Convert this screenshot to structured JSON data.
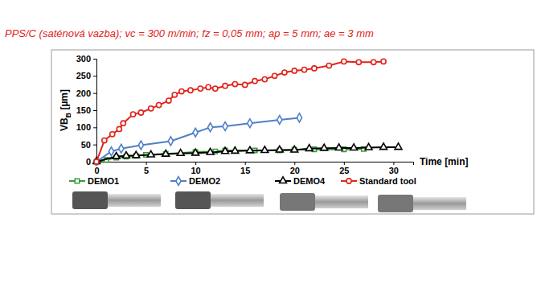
{
  "chart_data": {
    "type": "line",
    "title": "PPS/C (saténová vazba); vc = 300 m/min; fz = 0,05 mm; ap = 5 mm; ae = 3 mm",
    "x_label": "Time [min]",
    "y_label": {
      "main": "VB",
      "sub": "B",
      "rest": " [µm]"
    },
    "xlim": [
      0,
      32
    ],
    "xticks": [
      0,
      5,
      10,
      15,
      20,
      25,
      30
    ],
    "ylim": [
      0,
      300
    ],
    "yticks": [
      0,
      50,
      100,
      150,
      200,
      250,
      300
    ],
    "grid": false,
    "legend": "bottom",
    "series": [
      {
        "name": "DEMO1",
        "color": "#3c9a3c",
        "marker": "square",
        "x": [
          0,
          1,
          2,
          3,
          4,
          5,
          7,
          10,
          12,
          13,
          16,
          18.5,
          20,
          22,
          25,
          27
        ],
        "values": [
          0,
          5,
          12,
          15,
          17,
          20,
          23,
          28,
          30,
          33,
          33,
          33,
          35,
          36,
          36,
          37
        ]
      },
      {
        "name": "DEMO2",
        "color": "#4f7fc8",
        "marker": "diamond",
        "x": [
          0,
          1.5,
          2.5,
          4.5,
          7.5,
          10,
          11.5,
          13,
          15.5,
          18.5,
          20.5
        ],
        "values": [
          0,
          30,
          38,
          48,
          60,
          85,
          100,
          103,
          112,
          122,
          128
        ]
      },
      {
        "name": "DEMO4",
        "color": "#000000",
        "marker": "triangle",
        "x": [
          0,
          2,
          3,
          4,
          5.5,
          7,
          8.5,
          10,
          11.5,
          13,
          14,
          15.5,
          17,
          18.5,
          20,
          21.5,
          23,
          24.5,
          26,
          27.5,
          29,
          30.5
        ],
        "values": [
          0,
          15,
          17,
          18,
          20,
          22,
          24,
          25,
          27,
          30,
          31,
          32,
          33,
          34,
          34,
          38,
          39,
          40,
          40,
          41,
          42,
          42
        ]
      },
      {
        "name": "Standard tool",
        "color": "#e2231a",
        "marker": "circle",
        "x": [
          0,
          0.8,
          1.6,
          2.3,
          2.7,
          3.7,
          4.5,
          5.5,
          6.3,
          7.3,
          7.9,
          8.6,
          9.5,
          10.5,
          11.3,
          12,
          13,
          14,
          15,
          16,
          17,
          18,
          19,
          20,
          21,
          22,
          23.5,
          25,
          26.5,
          28,
          29
        ],
        "values": [
          0,
          62,
          80,
          95,
          112,
          138,
          143,
          155,
          165,
          178,
          195,
          205,
          208,
          213,
          217,
          213,
          221,
          226,
          224,
          235,
          240,
          250,
          260,
          265,
          268,
          272,
          280,
          292,
          290,
          290,
          292
        ]
      }
    ]
  }
}
